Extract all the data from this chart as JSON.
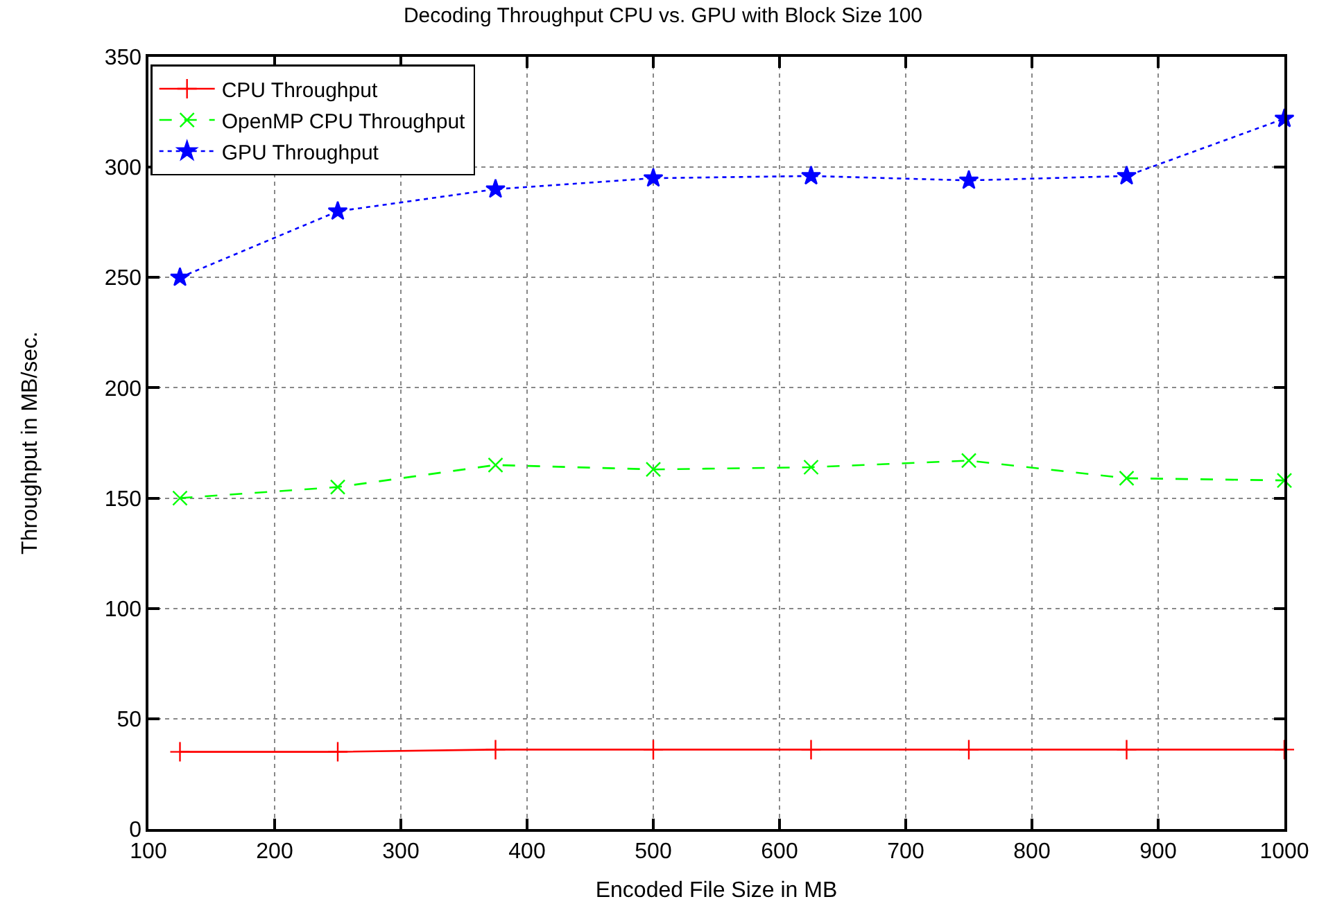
{
  "chart_data": {
    "type": "line",
    "title": "Decoding Throughput CPU vs. GPU with Block Size 100",
    "xlabel": "Encoded File Size in MB",
    "ylabel": "Throughput in MB/sec.",
    "x": [
      125,
      250,
      375,
      500,
      625,
      750,
      875,
      1000
    ],
    "series": [
      {
        "name": "CPU Throughput",
        "color": "#ff0000",
        "values": [
          35,
          35,
          36,
          36,
          36,
          36,
          36,
          36
        ],
        "marker": "cross",
        "line_style": "solid"
      },
      {
        "name": "OpenMP CPU Throughput",
        "color": "#00ff00",
        "values": [
          150,
          155,
          165,
          163,
          164,
          167,
          159,
          158
        ],
        "marker": "x",
        "line_style": "dashed"
      },
      {
        "name": "GPU Throughput",
        "color": "#0000ff",
        "values": [
          250,
          280,
          290,
          295,
          296,
          294,
          296,
          322
        ],
        "marker": "star",
        "line_style": "dotted"
      }
    ],
    "xlim": [
      100,
      1000
    ],
    "xticks": [
      100,
      200,
      300,
      400,
      500,
      600,
      700,
      800,
      900,
      1000
    ],
    "ylim": [
      0,
      350
    ],
    "yticks": [
      0,
      50,
      100,
      150,
      200,
      250,
      300,
      350
    ],
    "grid": true,
    "legend": "top left"
  }
}
